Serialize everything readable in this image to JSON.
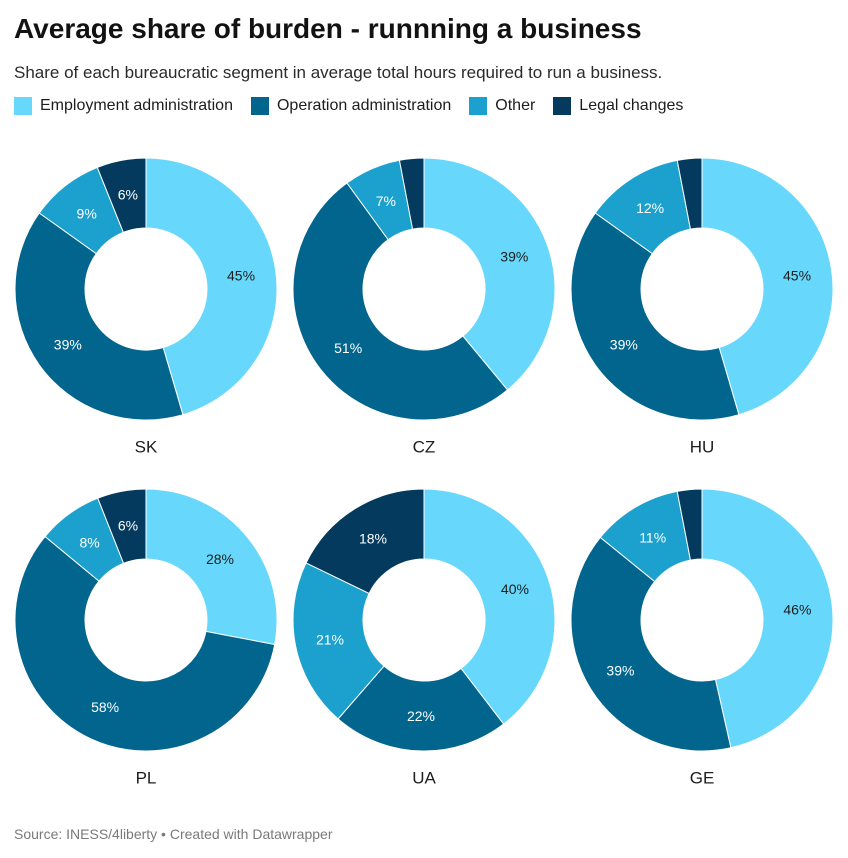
{
  "title": "Average share of burden - runnning a business",
  "subtitle": "Share of each bureaucratic segment in average total hours required to run a business.",
  "legend": [
    {
      "label": "Employment administration",
      "color": "#67d8fb"
    },
    {
      "label": "Operation administration",
      "color": "#01658e"
    },
    {
      "label": "Other",
      "color": "#1ca0cd"
    },
    {
      "label": "Legal changes",
      "color": "#043a5e"
    }
  ],
  "source": "Source: INESS/4liberty • Created with Datawrapper",
  "chart_data": {
    "type": "pie",
    "series_order": [
      "Employment administration",
      "Operation administration",
      "Other",
      "Legal changes"
    ],
    "colors": [
      "#67d8fb",
      "#01658e",
      "#1ca0cd",
      "#043a5e"
    ],
    "charts": [
      {
        "label": "SK",
        "values": [
          45,
          39,
          9,
          6
        ],
        "labels": [
          "45%",
          "39%",
          "9%",
          "6%"
        ]
      },
      {
        "label": "CZ",
        "values": [
          39,
          51,
          7,
          3
        ],
        "labels": [
          "39%",
          "51%",
          "7%",
          ""
        ]
      },
      {
        "label": "HU",
        "values": [
          45,
          39,
          12,
          3
        ],
        "labels": [
          "45%",
          "39%",
          "12%",
          ""
        ]
      },
      {
        "label": "PL",
        "values": [
          28,
          58,
          8,
          6
        ],
        "labels": [
          "28%",
          "58%",
          "8%",
          "6%"
        ]
      },
      {
        "label": "UA",
        "values": [
          40,
          22,
          21,
          18
        ],
        "labels": [
          "40%",
          "22%",
          "21%",
          "18%"
        ]
      },
      {
        "label": "GE",
        "values": [
          46,
          39,
          11,
          3
        ],
        "labels": [
          "46%",
          "39%",
          "11%",
          ""
        ]
      }
    ]
  }
}
